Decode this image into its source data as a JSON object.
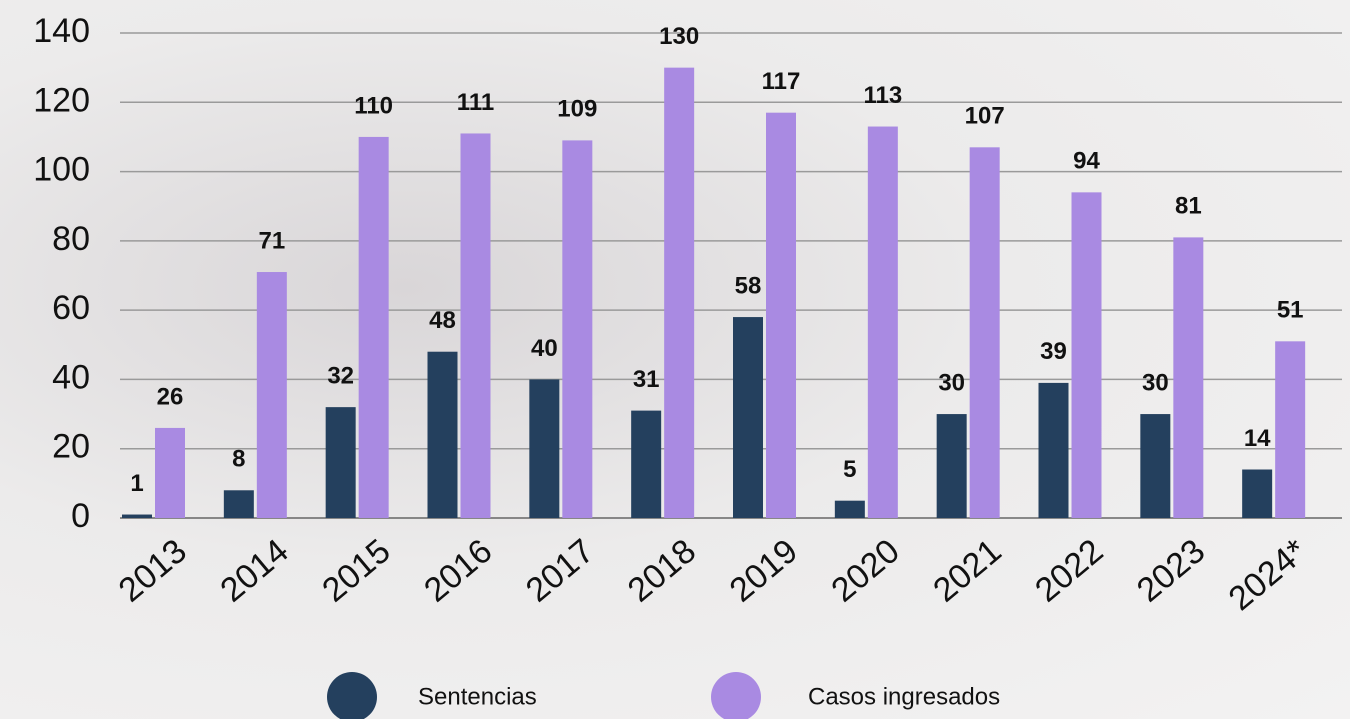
{
  "chart_data": {
    "type": "bar",
    "categories": [
      "2013",
      "2014",
      "2015",
      "2016",
      "2017",
      "2018",
      "2019",
      "2020",
      "2021",
      "2022",
      "2023",
      "2024*"
    ],
    "series": [
      {
        "name": "Sentencias",
        "color": "#24405e",
        "values": [
          1,
          8,
          32,
          48,
          40,
          31,
          58,
          5,
          30,
          39,
          30,
          14
        ]
      },
      {
        "name": "Casos ingresados",
        "color": "#a98ae2",
        "values": [
          26,
          71,
          110,
          111,
          109,
          130,
          117,
          113,
          107,
          94,
          81,
          51
        ]
      }
    ],
    "ylim": [
      0,
      140
    ],
    "yticks": [
      0,
      20,
      40,
      60,
      80,
      100,
      120,
      140
    ],
    "grid": true
  }
}
